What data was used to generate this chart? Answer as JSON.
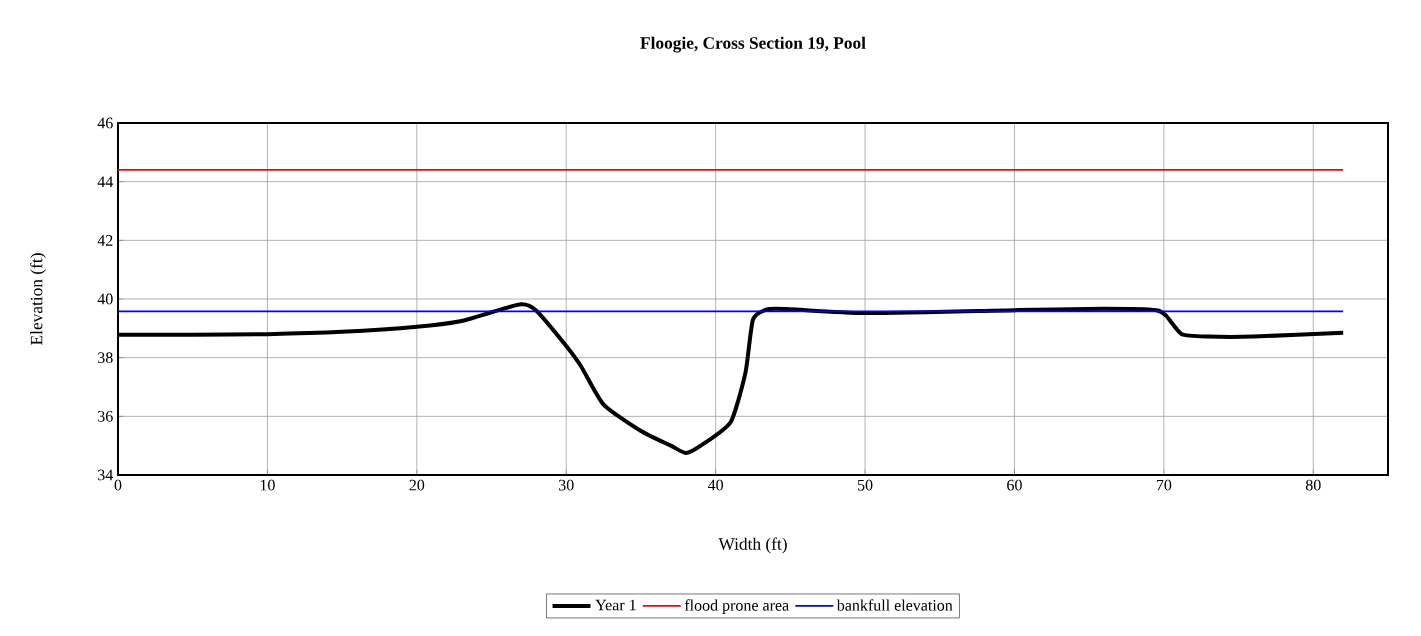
{
  "chart_data": {
    "type": "line",
    "title": "Floogie, Cross Section 19, Pool",
    "xlabel": "Width (ft)",
    "ylabel": "Elevation (ft)",
    "xlim": [
      0,
      85
    ],
    "xticks": [
      0,
      10,
      20,
      30,
      40,
      50,
      60,
      70,
      80
    ],
    "ylim": [
      34,
      46
    ],
    "yticks": [
      34,
      36,
      38,
      40,
      42,
      44,
      46
    ],
    "grid": true,
    "legend": "bottom",
    "marker": "none",
    "series": [
      {
        "name": "Year 1",
        "color": "#000000",
        "x": [
          0,
          5,
          10,
          15,
          20,
          23,
          25,
          27,
          28,
          30,
          31,
          32.5,
          35,
          37,
          38,
          39,
          41,
          42,
          42.5,
          43.5,
          45,
          50,
          60,
          66,
          69.5,
          70.2,
          71.2,
          73,
          76,
          82
        ],
        "values": [
          38.78,
          38.78,
          38.8,
          38.88,
          39.05,
          39.25,
          39.55,
          39.82,
          39.6,
          38.4,
          37.7,
          36.4,
          35.5,
          35.0,
          34.75,
          35.0,
          35.8,
          37.5,
          39.3,
          39.65,
          39.65,
          39.52,
          39.62,
          39.67,
          39.62,
          39.4,
          38.8,
          38.72,
          38.72,
          38.85
        ]
      },
      {
        "name": "flood prone area",
        "color": "#ff0000",
        "x": [
          0,
          82
        ],
        "values": [
          44.4,
          44.4
        ]
      },
      {
        "name": "bankfull elevation",
        "color": "#0000ff",
        "x": [
          0,
          82
        ],
        "values": [
          39.58,
          39.58
        ]
      }
    ]
  }
}
